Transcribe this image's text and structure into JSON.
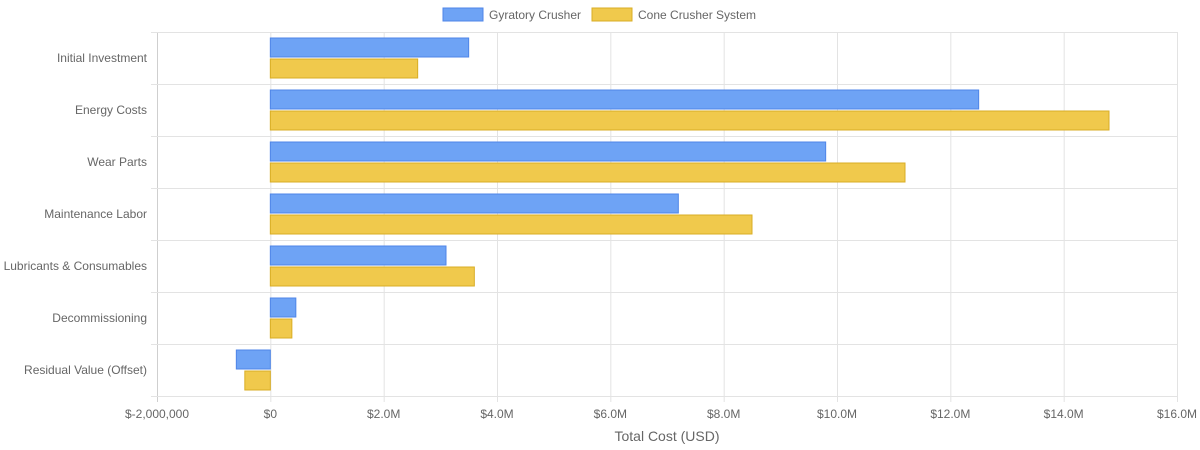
{
  "chart_data": {
    "type": "bar",
    "orientation": "horizontal",
    "categories": [
      "Initial Investment",
      "Energy Costs",
      "Wear Parts",
      "Maintenance Labor",
      "Lubricants & Consumables",
      "Decommissioning",
      "Residual Value (Offset)"
    ],
    "series": [
      {
        "name": "Gyratory Crusher",
        "color": "#6EA3F5",
        "border": "#4F86E8",
        "values": [
          3500000,
          12500000,
          9800000,
          7200000,
          3100000,
          450000,
          -600000
        ]
      },
      {
        "name": "Cone Crusher System",
        "color": "#F0C94C",
        "border": "#D9AD25",
        "values": [
          2600000,
          14800000,
          11200000,
          8500000,
          3600000,
          380000,
          -450000
        ]
      }
    ],
    "xlabel": "Total Cost (USD)",
    "xlim": [
      -2000000,
      16000000
    ],
    "x_ticks": [
      -2000000,
      0,
      2000000,
      4000000,
      6000000,
      8000000,
      10000000,
      12000000,
      14000000,
      16000000
    ],
    "x_tick_labels": [
      "$-2,000,000",
      "$0",
      "$2.0M",
      "$4.0M",
      "$6.0M",
      "$8.0M",
      "$10.0M",
      "$12.0M",
      "$14.0M",
      "$16.0M"
    ],
    "legend_position": "top",
    "grid": true
  }
}
